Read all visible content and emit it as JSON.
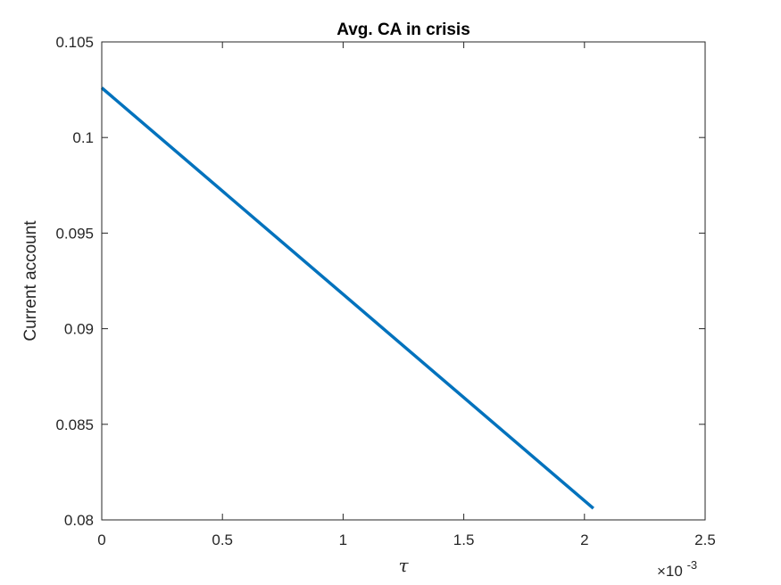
{
  "chart_data": {
    "type": "line",
    "title": "Avg. CA in crisis",
    "xlabel": "τ",
    "ylabel": "Current account",
    "x_exponent_label": {
      "base": "×10",
      "exponent": "-3"
    },
    "xlim": [
      0,
      0.0025
    ],
    "ylim": [
      0.08,
      0.105
    ],
    "x_ticks": [
      0,
      0.0005,
      0.001,
      0.0015,
      0.002,
      0.0025
    ],
    "x_tick_labels": [
      "0",
      "0.5",
      "1",
      "1.5",
      "2",
      "2.5"
    ],
    "y_ticks": [
      0.08,
      0.085,
      0.09,
      0.095,
      0.1,
      0.105
    ],
    "y_tick_labels": [
      "0.08",
      "0.085",
      "0.09",
      "0.095",
      "0.1",
      "0.105"
    ],
    "grid": false,
    "box": true,
    "series": [
      {
        "color": "#0072BD",
        "x": [
          0,
          0.002037
        ],
        "y": [
          0.1026,
          0.0806
        ]
      }
    ]
  }
}
